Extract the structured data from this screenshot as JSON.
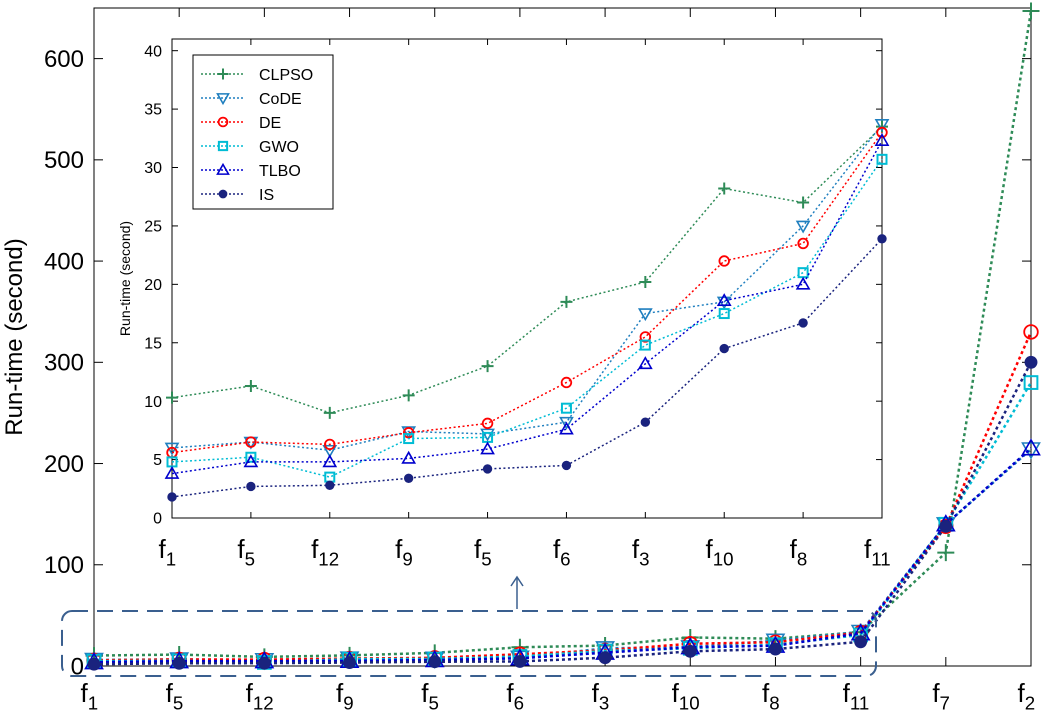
{
  "chart_data": [
    {
      "id": "main",
      "type": "line",
      "ylabel": "Run-time (second)",
      "xlabel": "",
      "categories": [
        {
          "base": "f",
          "sub": "1"
        },
        {
          "base": "f",
          "sub": "5"
        },
        {
          "base": "f",
          "sub": "12"
        },
        {
          "base": "f",
          "sub": "9"
        },
        {
          "base": "f",
          "sub": "5"
        },
        {
          "base": "f",
          "sub": "6"
        },
        {
          "base": "f",
          "sub": "3"
        },
        {
          "base": "f",
          "sub": "10"
        },
        {
          "base": "f",
          "sub": "8"
        },
        {
          "base": "f",
          "sub": "11"
        },
        {
          "base": "f",
          "sub": "7"
        },
        {
          "base": "f",
          "sub": "2"
        }
      ],
      "ylim": [
        0,
        650
      ],
      "yticks": [
        0,
        100,
        200,
        300,
        400,
        500,
        600
      ],
      "grid": false,
      "series": [
        {
          "name": "CLPSO",
          "color": "#2e8b57",
          "marker": "plus",
          "values": [
            10.3,
            11.3,
            9.0,
            10.5,
            13.0,
            18.5,
            20.2,
            28.2,
            27.0,
            33.5,
            112,
            647
          ]
        },
        {
          "name": "CoDE",
          "color": "#1f7fbf",
          "marker": "triangle-down",
          "values": [
            6.0,
            6.5,
            5.8,
            7.4,
            7.2,
            8.2,
            17.5,
            18.5,
            25.0,
            33.7,
            140,
            214
          ]
        },
        {
          "name": "DE",
          "color": "#ff0000",
          "marker": "circle",
          "values": [
            5.6,
            6.5,
            6.3,
            7.3,
            8.1,
            11.6,
            15.5,
            22.0,
            23.5,
            33.0,
            138,
            330
          ]
        },
        {
          "name": "GWO",
          "color": "#00bcd4",
          "marker": "square",
          "values": [
            4.8,
            5.2,
            3.5,
            6.8,
            6.9,
            9.4,
            14.8,
            17.5,
            21.0,
            30.7,
            140,
            280
          ]
        },
        {
          "name": "TLBO",
          "color": "#0000cd",
          "marker": "triangle-up",
          "values": [
            3.8,
            4.8,
            4.8,
            5.1,
            5.9,
            7.6,
            13.2,
            18.6,
            20.0,
            32.3,
            140,
            215
          ]
        },
        {
          "name": "IS",
          "color": "#1a237e",
          "marker": "dot",
          "values": [
            1.8,
            2.7,
            2.8,
            3.4,
            4.2,
            4.5,
            8.2,
            14.5,
            16.7,
            23.9,
            138,
            300
          ]
        }
      ]
    },
    {
      "id": "inset",
      "type": "line",
      "ylabel": "Run-time (second)",
      "xlabel": "",
      "categories": [
        {
          "base": "f",
          "sub": "1"
        },
        {
          "base": "f",
          "sub": "5"
        },
        {
          "base": "f",
          "sub": "12"
        },
        {
          "base": "f",
          "sub": "9"
        },
        {
          "base": "f",
          "sub": "5"
        },
        {
          "base": "f",
          "sub": "6"
        },
        {
          "base": "f",
          "sub": "3"
        },
        {
          "base": "f",
          "sub": "10"
        },
        {
          "base": "f",
          "sub": "8"
        },
        {
          "base": "f",
          "sub": "11"
        }
      ],
      "ylim": [
        0,
        41
      ],
      "yticks": [
        0,
        5,
        10,
        15,
        20,
        25,
        30,
        35,
        40
      ],
      "grid": false,
      "legend": "top-left",
      "series": [
        {
          "name": "CLPSO",
          "color": "#2e8b57",
          "marker": "plus",
          "values": [
            10.3,
            11.3,
            9.0,
            10.5,
            13.0,
            18.5,
            20.2,
            28.2,
            27.0,
            33.5
          ]
        },
        {
          "name": "CoDE",
          "color": "#1f7fbf",
          "marker": "triangle-down",
          "values": [
            6.0,
            6.5,
            5.8,
            7.4,
            7.2,
            8.2,
            17.5,
            18.5,
            25.0,
            33.7
          ]
        },
        {
          "name": "DE",
          "color": "#ff0000",
          "marker": "circle",
          "values": [
            5.6,
            6.5,
            6.3,
            7.3,
            8.1,
            11.6,
            15.5,
            22.0,
            23.5,
            33.0
          ]
        },
        {
          "name": "GWO",
          "color": "#00bcd4",
          "marker": "square",
          "values": [
            4.8,
            5.2,
            3.5,
            6.8,
            6.9,
            9.4,
            14.8,
            17.5,
            21.0,
            30.7
          ]
        },
        {
          "name": "TLBO",
          "color": "#0000cd",
          "marker": "triangle-up",
          "values": [
            3.8,
            4.8,
            4.8,
            5.1,
            5.9,
            7.6,
            13.2,
            18.6,
            20.0,
            32.3
          ]
        },
        {
          "name": "IS",
          "color": "#1a237e",
          "marker": "dot",
          "values": [
            1.8,
            2.7,
            2.8,
            3.4,
            4.2,
            4.5,
            8.2,
            14.5,
            16.7,
            23.9
          ]
        }
      ]
    }
  ]
}
